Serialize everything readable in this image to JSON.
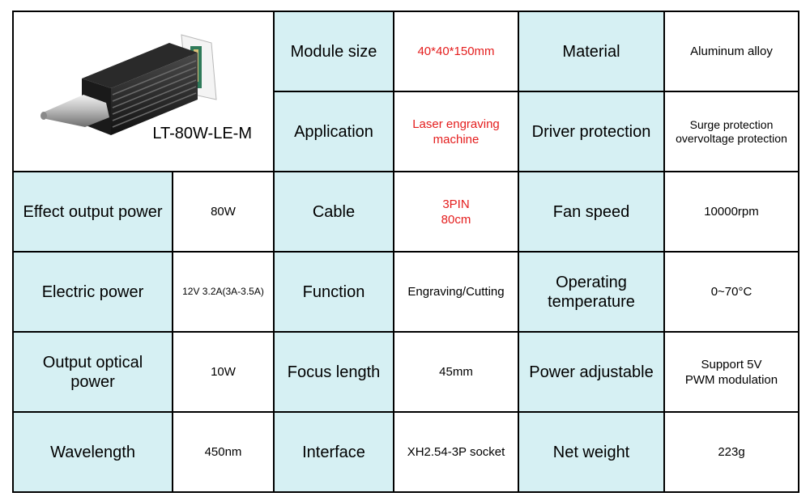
{
  "product": {
    "model": "LT-80W-LE-M"
  },
  "rows": [
    {
      "label1": "Module size",
      "value1": "40*40*150mm",
      "label2": "Material",
      "value2": "Aluminum alloy"
    },
    {
      "label1": "Application",
      "value1": [
        "Laser engraving",
        "machine"
      ],
      "label2": "Driver protection",
      "value2": [
        "Surge protection",
        "overvoltage protection"
      ]
    }
  ],
  "specs": [
    {
      "label0": "Effect output power",
      "value0": "80W",
      "label1": "Cable",
      "value1": [
        "3PIN",
        "80cm"
      ],
      "label2": "Fan speed",
      "value2": "10000rpm"
    },
    {
      "label0": "Electric power",
      "value0": "12V 3.2A(3A-3.5A)",
      "label1": "Function",
      "value1": "Engraving/Cutting",
      "label2": [
        "Operating",
        "temperature"
      ],
      "value2": "0~70°C"
    },
    {
      "label0": [
        "Output optical",
        "power"
      ],
      "value0": "10W",
      "label1": "Focus length",
      "value1": "45mm",
      "label2": "Power adjustable",
      "value2": [
        "Support 5V",
        "PWM modulation"
      ]
    },
    {
      "label0": "Wavelength",
      "value0": "450nm",
      "label1": "Interface",
      "value1": "XH2.54-3P socket",
      "label2": "Net weight",
      "value2": "223g"
    }
  ],
  "colors": {
    "label_bg": "#d6f0f3",
    "highlight_text": "#e41d1d",
    "border": "#000000"
  }
}
